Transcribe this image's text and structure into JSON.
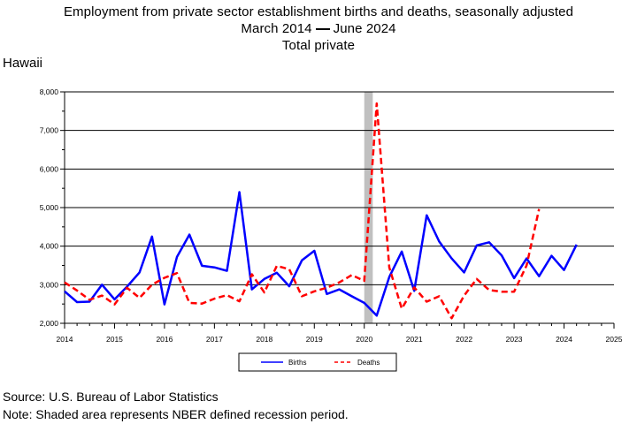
{
  "title": {
    "line1": "Employment from private sector establishment births and deaths, seasonally adjusted",
    "period_start": "March 2014",
    "period_end": "June 2024",
    "line3": "Total private"
  },
  "state_label": "Hawaii",
  "footer": {
    "source": "Source: U.S. Bureau of Labor Statistics",
    "note": "Note: Shaded area represents NBER defined recession period."
  },
  "colors": {
    "births": "#0000ff",
    "deaths": "#ff0000",
    "recession": "#c0c0c0",
    "grid": "#000000"
  },
  "chart_data": {
    "type": "line",
    "x_unit": "year (decimal, quarterly observations)",
    "xlim": [
      2014,
      2025
    ],
    "ylim": [
      2000,
      8000
    ],
    "x_ticks": [
      "2014",
      "2015",
      "2016",
      "2017",
      "2018",
      "2019",
      "2020",
      "2021",
      "2022",
      "2023",
      "2024",
      "2025"
    ],
    "y_ticks": [
      "2,000",
      "3,000",
      "4,000",
      "5,000",
      "6,000",
      "7,000",
      "8,000"
    ],
    "grid": "horizontal",
    "legend_position": "bottom-center",
    "recession": {
      "start": 2020.0,
      "end": 2020.17
    },
    "series": [
      {
        "name": "Births",
        "style": "solid",
        "x": [
          2014.0,
          2014.25,
          2014.5,
          2014.75,
          2015.0,
          2015.25,
          2015.5,
          2015.75,
          2016.0,
          2016.25,
          2016.5,
          2016.75,
          2017.0,
          2017.25,
          2017.5,
          2017.75,
          2018.0,
          2018.25,
          2018.5,
          2018.75,
          2019.0,
          2019.25,
          2019.5,
          2019.75,
          2020.0,
          2020.25,
          2020.5,
          2020.75,
          2021.0,
          2021.25,
          2021.5,
          2021.75,
          2022.0,
          2022.25,
          2022.5,
          2022.75,
          2023.0,
          2023.25,
          2023.5,
          2023.75,
          2024.0,
          2024.25
        ],
        "values": [
          2830,
          2550,
          2560,
          3000,
          2620,
          2950,
          3320,
          4250,
          2490,
          3720,
          4300,
          3490,
          3450,
          3360,
          5400,
          2880,
          3150,
          3310,
          2960,
          3630,
          3880,
          2760,
          2880,
          2700,
          2530,
          2200,
          3200,
          3860,
          2840,
          4800,
          4120,
          3680,
          3320,
          4020,
          4100,
          3760,
          3170,
          3680,
          3220,
          3750,
          3380,
          4040
        ]
      },
      {
        "name": "Deaths",
        "style": "dashed",
        "x": [
          2014.0,
          2014.25,
          2014.5,
          2014.75,
          2015.0,
          2015.25,
          2015.5,
          2015.75,
          2016.0,
          2016.25,
          2016.5,
          2016.75,
          2017.0,
          2017.25,
          2017.5,
          2017.75,
          2018.0,
          2018.25,
          2018.5,
          2018.75,
          2019.0,
          2019.25,
          2019.5,
          2019.75,
          2020.0,
          2020.25,
          2020.5,
          2020.75,
          2021.0,
          2021.25,
          2021.5,
          2021.75,
          2022.0,
          2022.25,
          2022.5,
          2022.75,
          2023.0,
          2023.25,
          2023.5
        ],
        "values": [
          3060,
          2850,
          2610,
          2720,
          2490,
          2920,
          2660,
          3000,
          3180,
          3300,
          2530,
          2510,
          2640,
          2730,
          2570,
          3270,
          2800,
          3490,
          3400,
          2700,
          2830,
          2920,
          3060,
          3250,
          3100,
          7700,
          3450,
          2380,
          2930,
          2560,
          2700,
          2130,
          2720,
          3150,
          2860,
          2820,
          2820,
          3500,
          4960
        ]
      }
    ]
  }
}
